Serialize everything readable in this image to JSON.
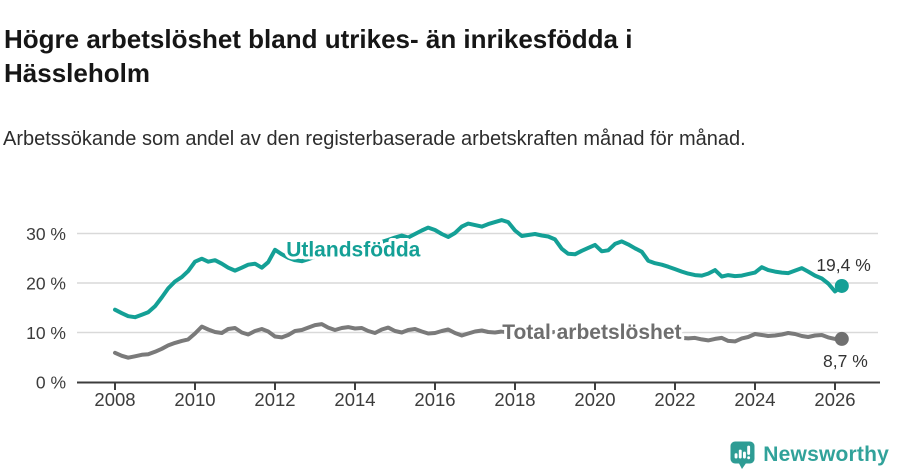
{
  "chart_data": {
    "type": "line",
    "title": "Högre arbetslöshet bland utrikes- än inrikesfödda i Hässleholm",
    "subtitle": "Arbetssökande som andel av den registerbaserade arbetskraften månad för månad.",
    "unit": "%",
    "xlabel": "",
    "ylabel": "",
    "xlim": [
      2007.05,
      2027.1
    ],
    "ylim": [
      0,
      34
    ],
    "grid": "horizontal",
    "legend": "inline-labels",
    "y_ticks": {
      "values": [
        0,
        10,
        20,
        30
      ],
      "labels": [
        "0 %",
        "10 %",
        "20 %",
        "30 %"
      ]
    },
    "x_ticks": {
      "values": [
        2008,
        2010,
        2012,
        2014,
        2016,
        2018,
        2020,
        2022,
        2024,
        2026
      ],
      "labels": [
        "2008",
        "2010",
        "2012",
        "2014",
        "2016",
        "2018",
        "2020",
        "2022",
        "2024",
        "2026"
      ]
    },
    "x": [
      2008.0,
      2008.17,
      2008.33,
      2008.5,
      2008.67,
      2008.83,
      2009.0,
      2009.17,
      2009.33,
      2009.5,
      2009.67,
      2009.83,
      2010.0,
      2010.17,
      2010.33,
      2010.5,
      2010.67,
      2010.83,
      2011.0,
      2011.17,
      2011.33,
      2011.5,
      2011.67,
      2011.83,
      2012.0,
      2012.17,
      2012.33,
      2012.5,
      2012.67,
      2012.83,
      2013.0,
      2013.17,
      2013.33,
      2013.5,
      2013.67,
      2013.83,
      2014.0,
      2014.17,
      2014.33,
      2014.5,
      2014.67,
      2014.83,
      2015.0,
      2015.17,
      2015.33,
      2015.5,
      2015.67,
      2015.83,
      2016.0,
      2016.17,
      2016.33,
      2016.5,
      2016.67,
      2016.83,
      2017.0,
      2017.17,
      2017.33,
      2017.5,
      2017.67,
      2017.83,
      2018.0,
      2018.17,
      2018.33,
      2018.5,
      2018.67,
      2018.83,
      2019.0,
      2019.17,
      2019.33,
      2019.5,
      2019.67,
      2019.83,
      2020.0,
      2020.17,
      2020.33,
      2020.5,
      2020.67,
      2020.83,
      2021.0,
      2021.17,
      2021.33,
      2021.5,
      2021.67,
      2021.83,
      2022.0,
      2022.17,
      2022.33,
      2022.5,
      2022.67,
      2022.83,
      2023.0,
      2023.17,
      2023.33,
      2023.5,
      2023.67,
      2023.83,
      2024.0,
      2024.17,
      2024.33,
      2024.5,
      2024.67,
      2024.83,
      2025.0,
      2025.17,
      2025.33,
      2025.5,
      2025.67,
      2025.83,
      2026.0,
      2026.17
    ],
    "series": [
      {
        "name": "Utlandsfödda",
        "color": "#14a096",
        "end_value": 19.4,
        "end_label": "19,4 %",
        "end_label_offset": [
          29,
          -15
        ],
        "label_anchor": {
          "x": 2012.28,
          "y": 25.4
        },
        "values": [
          14.6,
          13.9,
          13.3,
          13.1,
          13.6,
          14.1,
          15.3,
          17.1,
          18.9,
          20.3,
          21.2,
          22.4,
          24.3,
          24.9,
          24.3,
          24.6,
          23.9,
          23.1,
          22.5,
          23.1,
          23.7,
          23.9,
          23.1,
          24.2,
          26.7,
          25.8,
          25.1,
          24.6,
          24.4,
          24.8,
          25.3,
          25.8,
          26.3,
          26.4,
          26.0,
          26.6,
          27.0,
          27.5,
          28.1,
          27.8,
          28.3,
          28.7,
          29.2,
          29.6,
          29.2,
          29.9,
          30.6,
          31.2,
          30.7,
          29.9,
          29.3,
          30.1,
          31.4,
          32.0,
          31.7,
          31.4,
          31.9,
          32.3,
          32.7,
          32.3,
          30.6,
          29.5,
          29.7,
          29.9,
          29.6,
          29.4,
          28.8,
          26.9,
          25.9,
          25.8,
          26.5,
          27.1,
          27.7,
          26.4,
          26.6,
          27.9,
          28.4,
          27.8,
          27.0,
          26.3,
          24.5,
          24.0,
          23.7,
          23.3,
          22.8,
          22.3,
          21.9,
          21.6,
          21.5,
          21.9,
          22.6,
          21.3,
          21.6,
          21.4,
          21.5,
          21.8,
          22.1,
          23.2,
          22.6,
          22.3,
          22.1,
          22.0,
          22.5,
          23.0,
          22.3,
          21.5,
          20.9,
          19.9,
          18.3,
          19.4
        ]
      },
      {
        "name": "Total arbetslöshet",
        "color": "#7a7a7a",
        "label_color": "#6e6e6e",
        "end_value": 8.7,
        "end_label": "8,7 %",
        "end_label_offset": [
          26,
          28
        ],
        "label_anchor": {
          "x": 2017.68,
          "y": 8.7
        },
        "values": [
          5.9,
          5.3,
          4.9,
          5.2,
          5.5,
          5.6,
          6.1,
          6.7,
          7.4,
          7.9,
          8.3,
          8.6,
          9.8,
          11.2,
          10.6,
          10.1,
          9.9,
          10.7,
          10.9,
          10.0,
          9.6,
          10.3,
          10.7,
          10.2,
          9.2,
          9.0,
          9.5,
          10.3,
          10.5,
          11.0,
          11.5,
          11.7,
          11.0,
          10.5,
          10.9,
          11.1,
          10.8,
          10.9,
          10.3,
          9.9,
          10.6,
          11.0,
          10.3,
          10.0,
          10.5,
          10.7,
          10.2,
          9.8,
          9.9,
          10.3,
          10.6,
          9.9,
          9.4,
          9.8,
          10.2,
          10.4,
          10.1,
          10.0,
          10.2,
          10.0,
          9.9,
          10.1,
          10.2,
          10.0,
          9.9,
          10.0,
          10.1,
          9.9,
          9.8,
          10.0,
          9.9,
          10.0,
          10.1,
          10.2,
          10.4,
          10.5,
          10.3,
          10.2,
          10.0,
          9.9,
          9.7,
          9.5,
          9.3,
          9.2,
          9.1,
          8.9,
          8.8,
          8.9,
          8.6,
          8.4,
          8.7,
          8.9,
          8.3,
          8.2,
          8.8,
          9.1,
          9.7,
          9.5,
          9.3,
          9.4,
          9.6,
          9.9,
          9.7,
          9.3,
          9.1,
          9.4,
          9.5,
          9.0,
          8.7,
          8.7
        ]
      }
    ],
    "colors": {
      "grid": "#d9d9d9",
      "axis": "#3c3c3c",
      "tick_label": "#3c3c3c",
      "value_label": "#333333"
    }
  },
  "footer": {
    "brand": "Newsworthy",
    "brand_color": "#31a29a",
    "icon": "bar-chart-pin-icon"
  }
}
